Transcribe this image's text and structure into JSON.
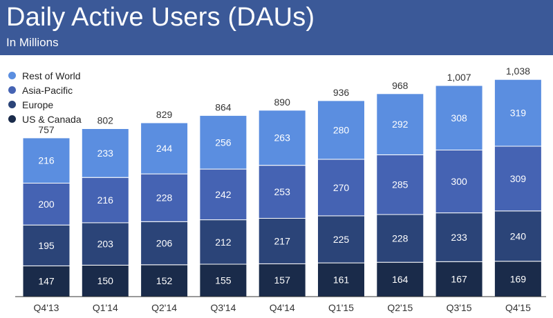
{
  "header": {
    "title": "Daily Active Users (DAUs)",
    "subtitle": "In Millions"
  },
  "colors": {
    "header_bg": "#3b5998",
    "rest_of_world": "#5b8ee0",
    "asia_pacific": "#4563b3",
    "europe": "#2b4478",
    "us_canada": "#1a2b4a"
  },
  "chart_data": {
    "type": "bar",
    "stacked": true,
    "categories": [
      "Q4'13",
      "Q1'14",
      "Q2'14",
      "Q3'14",
      "Q4'14",
      "Q1'15",
      "Q2'15",
      "Q3'15",
      "Q4'15"
    ],
    "series": [
      {
        "name": "US & Canada",
        "color": "#1a2b4a",
        "values": [
          147,
          150,
          152,
          155,
          157,
          161,
          164,
          167,
          169
        ]
      },
      {
        "name": "Europe",
        "color": "#2b4478",
        "values": [
          195,
          203,
          206,
          212,
          217,
          225,
          228,
          233,
          240
        ]
      },
      {
        "name": "Asia-Pacific",
        "color": "#4563b3",
        "values": [
          200,
          216,
          228,
          242,
          253,
          270,
          285,
          300,
          309
        ]
      },
      {
        "name": "Rest of World",
        "color": "#5b8ee0",
        "values": [
          216,
          233,
          244,
          256,
          263,
          280,
          292,
          308,
          319
        ]
      }
    ],
    "totals": [
      "757",
      "802",
      "829",
      "864",
      "890",
      "936",
      "968",
      "1,007",
      "1,038"
    ],
    "legend": {
      "placement": "top-left",
      "entries": [
        "Rest of World",
        "Asia-Pacific",
        "Europe",
        "US & Canada"
      ]
    },
    "ylim": [
      0,
      1120
    ],
    "grid": false
  }
}
